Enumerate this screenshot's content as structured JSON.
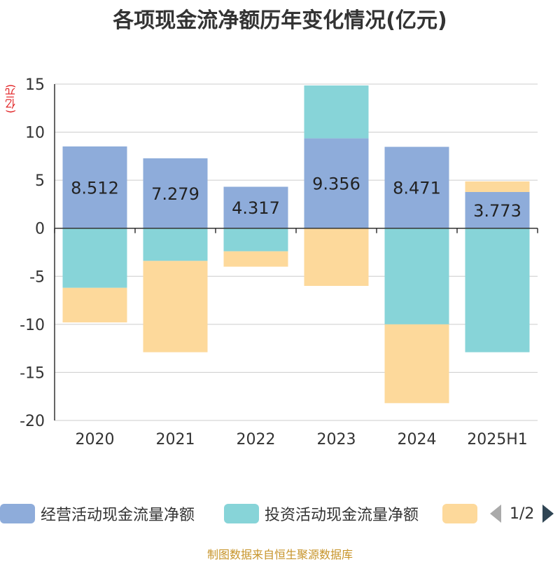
{
  "title": "各项现金流净额历年变化情况(亿元)",
  "source": "制图数据来自恒生聚源数据库",
  "chart_data": {
    "type": "bar",
    "stacked": true,
    "title": "各项现金流净额历年变化情况(亿元)",
    "ylabel": "(亿元)",
    "xlabel": "",
    "categories": [
      "2020",
      "2021",
      "2022",
      "2023",
      "2024",
      "2025H1"
    ],
    "ylim": [
      -20,
      15
    ],
    "yticks": [
      15,
      10,
      5,
      0,
      -5,
      -10,
      -15,
      -20
    ],
    "grid": true,
    "legend_position": "bottom",
    "series": [
      {
        "name": "经营活动现金流量净额",
        "color": "#8eacda",
        "values": [
          8.512,
          7.279,
          4.317,
          9.356,
          8.471,
          3.773
        ],
        "labels": [
          "8.512",
          "7.279",
          "4.317",
          "9.356",
          "8.471",
          "3.773"
        ]
      },
      {
        "name": "投资活动现金流量净额",
        "color": "#87d4d8",
        "values": [
          -6.2,
          -3.4,
          -2.4,
          5.5,
          -10.0,
          -12.9
        ]
      },
      {
        "name": "",
        "color": "#fdd99b",
        "values": [
          -3.6,
          -9.5,
          -1.6,
          -6.0,
          -8.2,
          1.1
        ]
      }
    ]
  },
  "legend": {
    "items": [
      {
        "label": "经营活动现金流量净额",
        "color": "#8eacda"
      },
      {
        "label": "投资活动现金流量净额",
        "color": "#87d4d8"
      },
      {
        "label": "",
        "color": "#fdd99b"
      }
    ],
    "page": "1/2"
  }
}
